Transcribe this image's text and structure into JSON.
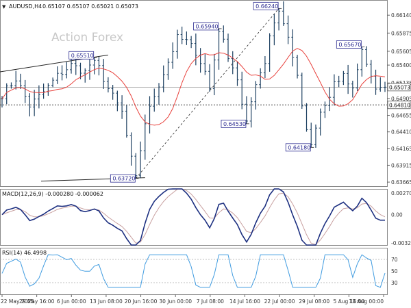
{
  "chart_data": [
    {
      "type": "bar",
      "panel": "price",
      "title": "AUDUSD,H4",
      "ohlc": "0.65107 0.65107 0.65021 0.65073",
      "watermark": "Action Forex",
      "ylim": [
        0.63605,
        0.66345
      ],
      "y_ticks": [
        "0.66140",
        "0.65875",
        "0.65605",
        "0.65400",
        "0.65135",
        "0.64905",
        "0.64655",
        "0.64410",
        "0.64165",
        "0.63915",
        "0.63665"
      ],
      "current_price": 0.65073,
      "current_price_label": "0.65073",
      "support_level": 0.6481,
      "support_label": "0.64810",
      "moving_average_color": "#e8413c",
      "bar_color": "#1c3f60",
      "x_labels": [
        "22 May 2025",
        "29 May 16:00",
        "6 Jun 00:00",
        "13 Jun 08:00",
        "20 Jun 16:00",
        "30 Jun 00:00",
        "7 Jul 08:00",
        "14 Jul 16:00",
        "22 Jul 00:00",
        "29 Jul 08:00",
        "5 Aug 16:00",
        "13 Aug 00:00"
      ],
      "swing_points": [
        {
          "bar": 20,
          "price": 0.6551,
          "label": "0.65510"
        },
        {
          "bar": 29,
          "price": 0.6372,
          "label": "0.63720"
        },
        {
          "bar": 47,
          "price": 0.6594,
          "label": "0.65940"
        },
        {
          "bar": 53,
          "price": 0.6453,
          "label": "0.64530"
        },
        {
          "bar": 60,
          "price": 0.6624,
          "label": "0.66240"
        },
        {
          "bar": 67,
          "price": 0.6418,
          "label": "0.64180"
        },
        {
          "bar": 78,
          "price": 0.6567,
          "label": "0.65670"
        }
      ],
      "anchor_closes": [
        [
          0,
          0.6496
        ],
        [
          3,
          0.652
        ],
        [
          6,
          0.648
        ],
        [
          9,
          0.65
        ],
        [
          12,
          0.6524
        ],
        [
          15,
          0.654
        ],
        [
          18,
          0.653
        ],
        [
          20,
          0.6551
        ],
        [
          23,
          0.6505
        ],
        [
          26,
          0.647
        ],
        [
          28,
          0.64
        ],
        [
          29,
          0.6374
        ],
        [
          31,
          0.6455
        ],
        [
          33,
          0.6495
        ],
        [
          36,
          0.6545
        ],
        [
          38,
          0.658
        ],
        [
          40,
          0.6575
        ],
        [
          42,
          0.656
        ],
        [
          44,
          0.653
        ],
        [
          45,
          0.6505
        ],
        [
          47,
          0.6592
        ],
        [
          49,
          0.6555
        ],
        [
          51,
          0.652
        ],
        [
          52,
          0.648
        ],
        [
          53,
          0.6456
        ],
        [
          55,
          0.6515
        ],
        [
          57,
          0.6545
        ],
        [
          58,
          0.6585
        ],
        [
          60,
          0.6622
        ],
        [
          62,
          0.658
        ],
        [
          63,
          0.6555
        ],
        [
          64,
          0.652
        ],
        [
          65,
          0.648
        ],
        [
          66,
          0.644
        ],
        [
          67,
          0.642
        ],
        [
          69,
          0.647
        ],
        [
          71,
          0.649
        ],
        [
          72,
          0.651
        ],
        [
          74,
          0.6525
        ],
        [
          76,
          0.6505
        ],
        [
          78,
          0.6565
        ],
        [
          80,
          0.652
        ],
        [
          81,
          0.65
        ],
        [
          82,
          0.6507
        ]
      ]
    },
    {
      "type": "line",
      "panel": "macd",
      "title": "MACD(12,26,9) -0.000280 -0.000062",
      "ylim": [
        -0.0034,
        0.0029
      ],
      "y_ticks": [
        "0.002702",
        "0.00",
        "-0.003241"
      ],
      "series_colors": {
        "macd": "#1c2f80",
        "signal": "#c8a0a0"
      }
    },
    {
      "type": "line",
      "panel": "rsi",
      "title": "RSI(14) 46.4998",
      "ylim": [
        10,
        90
      ],
      "levels": [
        70,
        30
      ],
      "y_ticks": [
        "70",
        "50",
        "30"
      ],
      "series_colors": {
        "rsi": "#3f9be0"
      }
    }
  ]
}
